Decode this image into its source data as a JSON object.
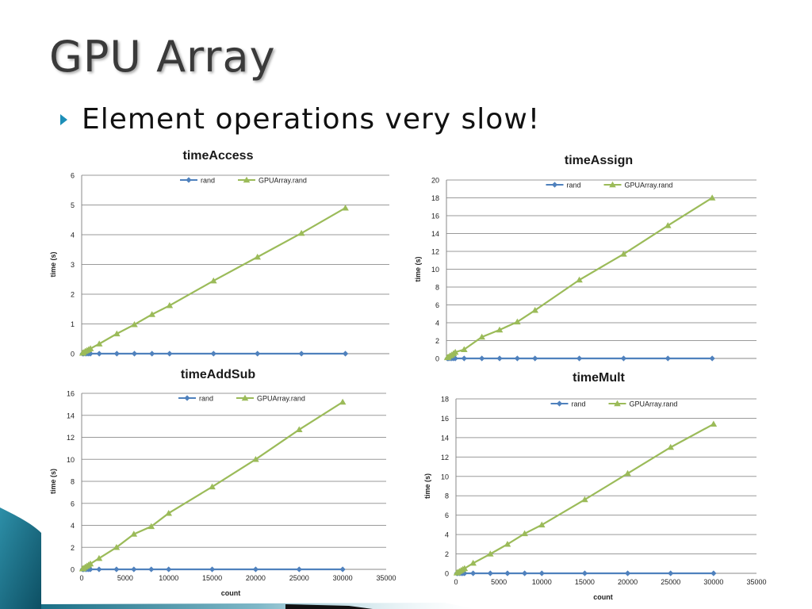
{
  "slide": {
    "title": "GPU Array",
    "bullet": "Element operations very slow!"
  },
  "colors": {
    "rand": "#4f81bd",
    "gpu": "#9bbb59",
    "title_text": "#3a3a3a",
    "bullet_accent": "#1d8fb8",
    "decor_teal": "#1a6f86"
  },
  "chart_data": [
    {
      "id": "chart-time-access",
      "type": "line",
      "title": "timeAccess",
      "xlabel": "",
      "ylabel": "time (s)",
      "ylim": [
        0,
        6
      ],
      "yticks": [
        0,
        1,
        2,
        3,
        4,
        5,
        6
      ],
      "xlim": [
        0,
        35000
      ],
      "xticks": [],
      "legend": "top-center",
      "grid": true,
      "series": [
        {
          "name": "rand",
          "marker": "diamond",
          "color": "#4f81bd",
          "x": [
            100,
            200,
            400,
            600,
            800,
            1000,
            2000,
            4000,
            6000,
            8000,
            10000,
            15000,
            20000,
            25000,
            30000
          ],
          "y": [
            0,
            0,
            0,
            0,
            0,
            0,
            0,
            0,
            0,
            0,
            0,
            0,
            0,
            0,
            0
          ]
        },
        {
          "name": "GPUArray.rand",
          "marker": "triangle",
          "color": "#9bbb59",
          "x": [
            100,
            200,
            400,
            600,
            800,
            1000,
            2000,
            4000,
            6000,
            8000,
            10000,
            15000,
            20000,
            25000,
            30000
          ],
          "y": [
            0.02,
            0.04,
            0.08,
            0.11,
            0.14,
            0.17,
            0.33,
            0.67,
            0.98,
            1.32,
            1.62,
            2.45,
            3.25,
            4.05,
            4.9
          ]
        }
      ]
    },
    {
      "id": "chart-time-assign",
      "type": "line",
      "title": "timeAssign",
      "xlabel": "",
      "ylabel": "time (s)",
      "ylim": [
        0,
        20
      ],
      "yticks": [
        0,
        2,
        4,
        6,
        8,
        10,
        12,
        14,
        16,
        18,
        20
      ],
      "xlim": [
        0,
        35000
      ],
      "xticks": [],
      "legend": "top-center",
      "grid": true,
      "series": [
        {
          "name": "rand",
          "marker": "diamond",
          "color": "#4f81bd",
          "x": [
            100,
            200,
            400,
            600,
            800,
            1000,
            2000,
            4000,
            6000,
            8000,
            10000,
            15000,
            20000,
            25000,
            30000
          ],
          "y": [
            0,
            0,
            0,
            0,
            0,
            0,
            0,
            0,
            0,
            0,
            0,
            0,
            0,
            0,
            0
          ]
        },
        {
          "name": "GPUArray.rand",
          "marker": "triangle",
          "color": "#9bbb59",
          "x": [
            100,
            200,
            400,
            600,
            800,
            1000,
            2000,
            4000,
            6000,
            8000,
            10000,
            15000,
            20000,
            25000,
            30000
          ],
          "y": [
            0.1,
            0.15,
            0.3,
            0.4,
            0.55,
            0.7,
            1.0,
            2.4,
            3.2,
            4.1,
            5.4,
            8.8,
            11.7,
            14.9,
            18.0
          ]
        }
      ]
    },
    {
      "id": "chart-time-addsub",
      "type": "line",
      "title": "timeAddSub",
      "xlabel": "count",
      "ylabel": "time (s)",
      "ylim": [
        0,
        16
      ],
      "yticks": [
        0,
        2,
        4,
        6,
        8,
        10,
        12,
        14,
        16
      ],
      "xlim": [
        0,
        35000
      ],
      "xticks": [
        0,
        5000,
        10000,
        15000,
        20000,
        25000,
        30000,
        35000
      ],
      "legend": "top-center",
      "grid": true,
      "series": [
        {
          "name": "rand",
          "marker": "diamond",
          "color": "#4f81bd",
          "x": [
            100,
            200,
            400,
            600,
            800,
            1000,
            2000,
            4000,
            6000,
            8000,
            10000,
            15000,
            20000,
            25000,
            30000
          ],
          "y": [
            0,
            0,
            0,
            0,
            0,
            0,
            0,
            0,
            0,
            0,
            0,
            0,
            0,
            0,
            0
          ]
        },
        {
          "name": "GPUArray.rand",
          "marker": "triangle",
          "color": "#9bbb59",
          "x": [
            100,
            200,
            400,
            600,
            800,
            1000,
            2000,
            4000,
            6000,
            8000,
            10000,
            15000,
            20000,
            25000,
            30000
          ],
          "y": [
            0.05,
            0.1,
            0.2,
            0.3,
            0.4,
            0.5,
            1.0,
            2.0,
            3.2,
            3.9,
            5.1,
            7.5,
            10.0,
            12.7,
            15.2
          ]
        }
      ]
    },
    {
      "id": "chart-time-mult",
      "type": "line",
      "title": "timeMult",
      "xlabel": "count",
      "ylabel": "time (s)",
      "ylim": [
        0,
        18
      ],
      "yticks": [
        0,
        2,
        4,
        6,
        8,
        10,
        12,
        14,
        16,
        18
      ],
      "xlim": [
        0,
        35000
      ],
      "xticks": [
        0,
        5000,
        10000,
        15000,
        20000,
        25000,
        30000,
        35000
      ],
      "legend": "top-center",
      "grid": true,
      "series": [
        {
          "name": "rand",
          "marker": "diamond",
          "color": "#4f81bd",
          "x": [
            100,
            200,
            400,
            600,
            800,
            1000,
            2000,
            4000,
            6000,
            8000,
            10000,
            15000,
            20000,
            25000,
            30000
          ],
          "y": [
            0,
            0,
            0,
            0,
            0,
            0,
            0,
            0,
            0,
            0,
            0,
            0,
            0,
            0,
            0
          ]
        },
        {
          "name": "GPUArray.rand",
          "marker": "triangle",
          "color": "#9bbb59",
          "x": [
            100,
            200,
            400,
            600,
            800,
            1000,
            2000,
            4000,
            6000,
            8000,
            10000,
            15000,
            20000,
            25000,
            30000
          ],
          "y": [
            0.05,
            0.1,
            0.2,
            0.3,
            0.4,
            0.5,
            1.05,
            2.0,
            3.0,
            4.1,
            5.0,
            7.6,
            10.3,
            13.0,
            15.4
          ]
        }
      ]
    }
  ]
}
